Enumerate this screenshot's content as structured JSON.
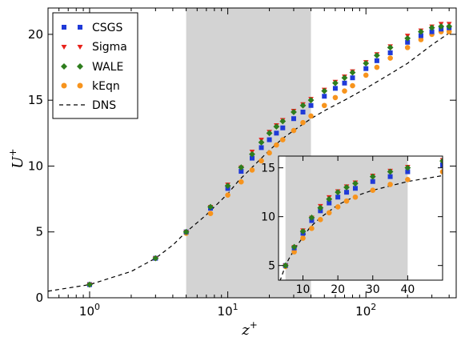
{
  "chart_data": {
    "type": "scatter",
    "title": "",
    "xlabel": "z",
    "xlabel_sup": "+",
    "ylabel": "U",
    "ylabel_sup": "+",
    "xscale": "log",
    "xlim": [
      0.5,
      450
    ],
    "ylim": [
      0,
      22
    ],
    "xticks": [
      1,
      10,
      100
    ],
    "xtick_labels": [
      {
        "base": "10",
        "exp": "0"
      },
      {
        "base": "10",
        "exp": "1"
      },
      {
        "base": "10",
        "exp": "2"
      }
    ],
    "yticks": [
      0,
      5,
      10,
      15,
      20
    ],
    "ytick_labels": [
      "0",
      "5",
      "10",
      "15",
      "20"
    ],
    "shaded_region": [
      5,
      40
    ],
    "legend_position": "top-left",
    "grid": false,
    "colors": {
      "CSGS": "#1f3ad8",
      "Sigma": "#e8221b",
      "WALE": "#2e7d1d",
      "kEqn": "#f7941d",
      "DNS": "#000000",
      "shade": "#d3d3d3"
    },
    "series": [
      {
        "name": "CSGS",
        "marker": "square",
        "x": [
          1,
          3,
          5,
          7.5,
          10,
          12.5,
          15,
          17.5,
          20,
          22.5,
          25,
          30,
          35,
          40,
          50,
          60,
          70,
          80,
          100,
          120,
          150,
          200,
          250,
          300,
          350,
          400
        ],
        "y": [
          1.0,
          3.0,
          5.0,
          6.8,
          8.3,
          9.6,
          10.6,
          11.4,
          12.0,
          12.5,
          12.9,
          13.6,
          14.1,
          14.6,
          15.3,
          15.9,
          16.3,
          16.7,
          17.4,
          18.0,
          18.6,
          19.4,
          19.9,
          20.2,
          20.4,
          20.5
        ]
      },
      {
        "name": "Sigma",
        "marker": "triangle-down",
        "x": [
          1,
          3,
          5,
          7.5,
          10,
          12.5,
          15,
          17.5,
          20,
          22.5,
          25,
          30,
          35,
          40,
          50,
          60,
          70,
          80,
          100,
          120,
          150,
          200,
          250,
          300,
          350,
          400
        ],
        "y": [
          1.0,
          3.0,
          5.0,
          6.9,
          8.6,
          9.9,
          11.1,
          12.0,
          12.6,
          13.1,
          13.5,
          14.2,
          14.7,
          15.1,
          15.8,
          16.4,
          16.8,
          17.2,
          17.9,
          18.5,
          19.1,
          19.9,
          20.3,
          20.6,
          20.8,
          20.8
        ]
      },
      {
        "name": "WALE",
        "marker": "diamond",
        "x": [
          1,
          3,
          5,
          7.5,
          10,
          12.5,
          15,
          17.5,
          20,
          22.5,
          25,
          30,
          35,
          40,
          50,
          60,
          70,
          80,
          100,
          120,
          150,
          200,
          250,
          300,
          350,
          400
        ],
        "y": [
          1.0,
          3.0,
          5.0,
          6.9,
          8.5,
          9.9,
          10.9,
          11.8,
          12.5,
          13.0,
          13.4,
          14.1,
          14.6,
          15.0,
          15.7,
          16.3,
          16.7,
          17.1,
          17.8,
          18.4,
          19.0,
          19.7,
          20.2,
          20.5,
          20.6,
          20.6
        ]
      },
      {
        "name": "kEqn",
        "marker": "circle",
        "x": [
          1,
          3,
          5,
          7.5,
          10,
          12.5,
          15,
          17.5,
          20,
          22.5,
          25,
          30,
          35,
          40,
          50,
          60,
          70,
          80,
          100,
          120,
          150,
          200,
          250,
          300,
          350,
          400
        ],
        "y": [
          1.0,
          3.0,
          4.9,
          6.4,
          7.8,
          8.8,
          9.7,
          10.4,
          11.0,
          11.6,
          12.0,
          12.7,
          13.3,
          13.8,
          14.6,
          15.2,
          15.7,
          16.1,
          16.9,
          17.5,
          18.2,
          19.0,
          19.6,
          20.0,
          20.2,
          20.2
        ]
      },
      {
        "name": "DNS",
        "marker": "dashed-line",
        "x": [
          0.5,
          1,
          2,
          3,
          4,
          5,
          6,
          7,
          8,
          10,
          12,
          15,
          20,
          25,
          30,
          40,
          50,
          70,
          100,
          150,
          200,
          300,
          400
        ],
        "y": [
          0.5,
          1.0,
          2.0,
          3.0,
          4.0,
          5.0,
          5.7,
          6.3,
          6.9,
          7.9,
          8.9,
          9.9,
          11.2,
          12.1,
          12.7,
          13.6,
          14.2,
          15.0,
          15.9,
          17.0,
          17.8,
          19.2,
          20.1
        ]
      }
    ],
    "inset": {
      "xscale": "linear",
      "xlim": [
        3,
        50
      ],
      "ylim": [
        3.5,
        16.2
      ],
      "xticks": [
        10,
        20,
        30,
        40
      ],
      "xtick_labels": [
        "10",
        "20",
        "30",
        "40"
      ],
      "yticks": [
        5,
        10,
        15
      ],
      "ytick_labels": [
        "5",
        "10",
        "15"
      ],
      "shaded_region": [
        5,
        40
      ]
    }
  }
}
